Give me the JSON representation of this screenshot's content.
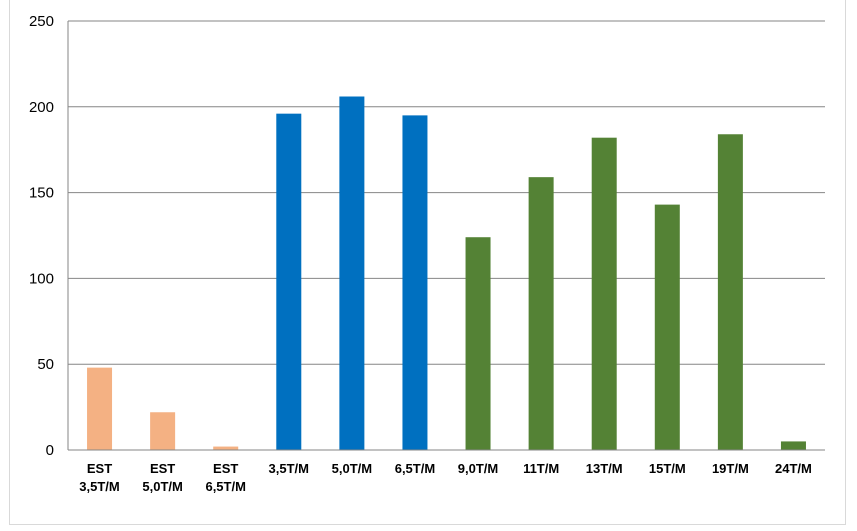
{
  "chart_data": {
    "type": "bar",
    "title": "",
    "categories": [
      [
        "EST",
        "3,5T/M"
      ],
      [
        "EST",
        "5,0T/M"
      ],
      [
        "EST",
        "6,5T/M"
      ],
      [
        "3,5T/M"
      ],
      [
        "5,0T/M"
      ],
      [
        "6,5T/M"
      ],
      [
        "9,0T/M"
      ],
      [
        "11T/M"
      ],
      [
        "13T/M"
      ],
      [
        "15T/M"
      ],
      [
        "19T/M"
      ],
      [
        "24T/M"
      ]
    ],
    "values": [
      48,
      22,
      2,
      196,
      206,
      195,
      124,
      159,
      182,
      143,
      184,
      5
    ],
    "bar_colors": [
      "#f4b183",
      "#f4b183",
      "#f4b183",
      "#0070c0",
      "#0070c0",
      "#0070c0",
      "#548235",
      "#548235",
      "#548235",
      "#548235",
      "#548235",
      "#548235"
    ],
    "ylim": [
      0,
      250
    ],
    "yticks": [
      0,
      50,
      100,
      150,
      200,
      250
    ],
    "xlabel": "",
    "ylabel": "",
    "grid": true,
    "legend": "none"
  }
}
